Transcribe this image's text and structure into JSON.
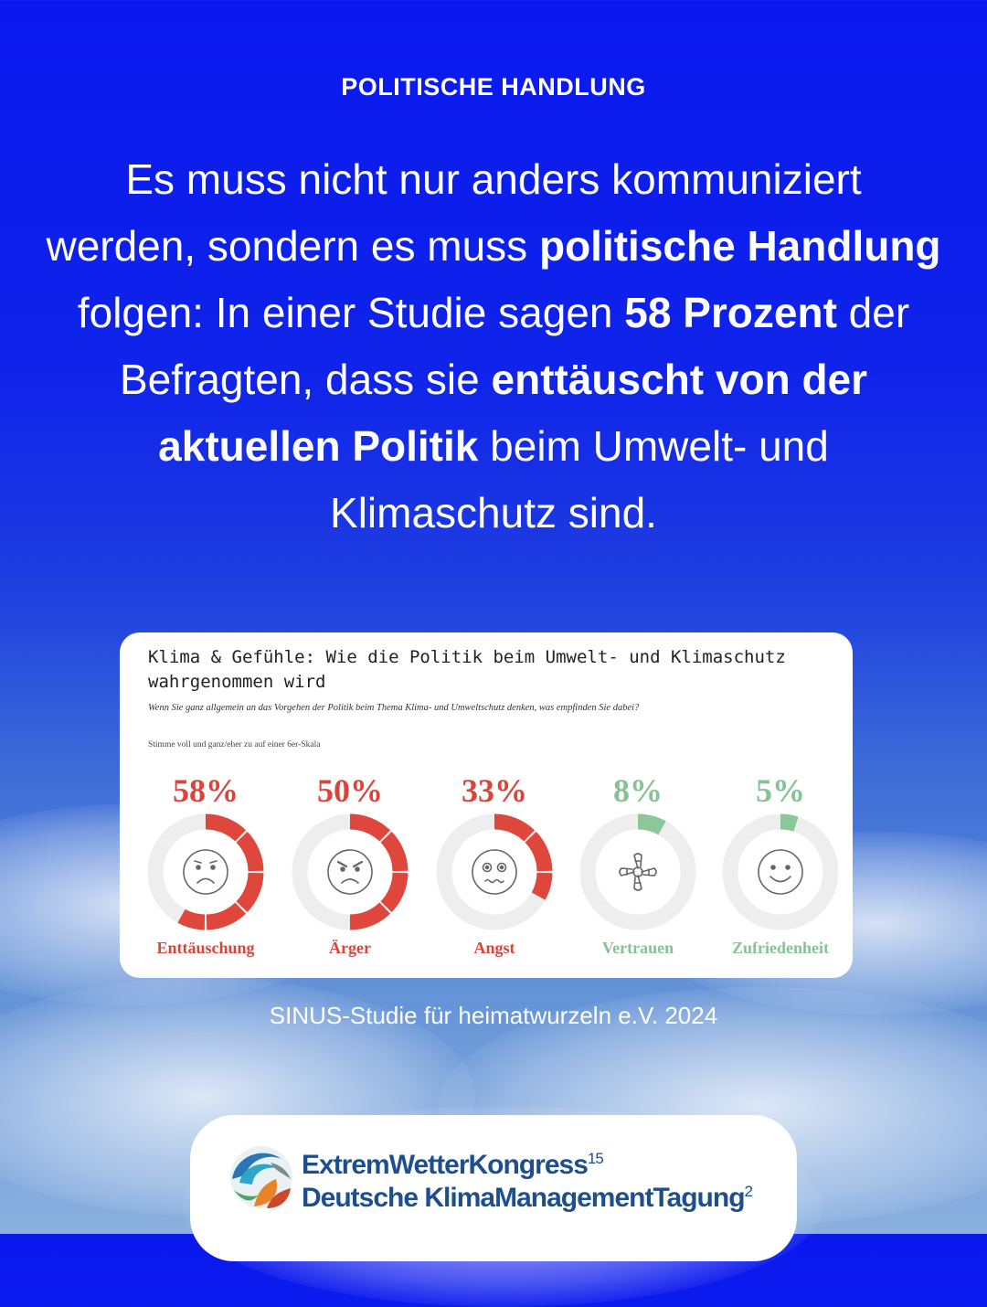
{
  "kicker": "POLITISCHE HANDLUNG",
  "headline": {
    "p1": "Es muss nicht nur anders kommuniziert werden, sondern es muss ",
    "b1": "politische Handlung",
    "p2": " folgen: In einer Studie sagen ",
    "b2": "58 Prozent",
    "p3": " der Befragten, dass sie ",
    "b3": "enttäuscht von der aktuellen Politik",
    "p4": " beim Umwelt- und Klimaschutz sind."
  },
  "chart_data": {
    "type": "donut",
    "title": "Klima & Gefühle: Wie die Politik beim Umwelt- und Klimaschutz wahrgenommen wird",
    "question": "Wenn Sie ganz allgemein an das Vorgehen der Politik beim Thema Klima- und Umweltschutz denken, was empfinden Sie dabei?",
    "scale_note": "Stimme voll und ganz/eher zu auf einer 6er-Skala",
    "categories": [
      "Enttäuschung",
      "Ärger",
      "Angst",
      "Vertrauen",
      "Zufriedenheit"
    ],
    "values": [
      58,
      50,
      33,
      8,
      5
    ],
    "value_labels": [
      "58%",
      "50%",
      "33%",
      "8%",
      "5%"
    ],
    "icons": [
      "sad-face-icon",
      "angry-face-icon",
      "anxious-face-icon",
      "joined-hands-icon",
      "happy-face-icon"
    ],
    "colors": [
      "#e0473c",
      "#e0473c",
      "#e0473c",
      "#8cc79a",
      "#8cc79a"
    ],
    "text_colors": [
      "#d9453c",
      "#d9453c",
      "#d9453c",
      "#86c294",
      "#86c294"
    ],
    "track_color": "#eeeeee",
    "ylim": [
      0,
      100
    ]
  },
  "source": "SINUS-Studie für heimatwurzeln e.V. 2024",
  "footer": {
    "line1": "ExtremWetterKongress",
    "line1_sup": "15",
    "line2": "Deutsche KlimaManagementTagung",
    "line2_sup": "2"
  }
}
